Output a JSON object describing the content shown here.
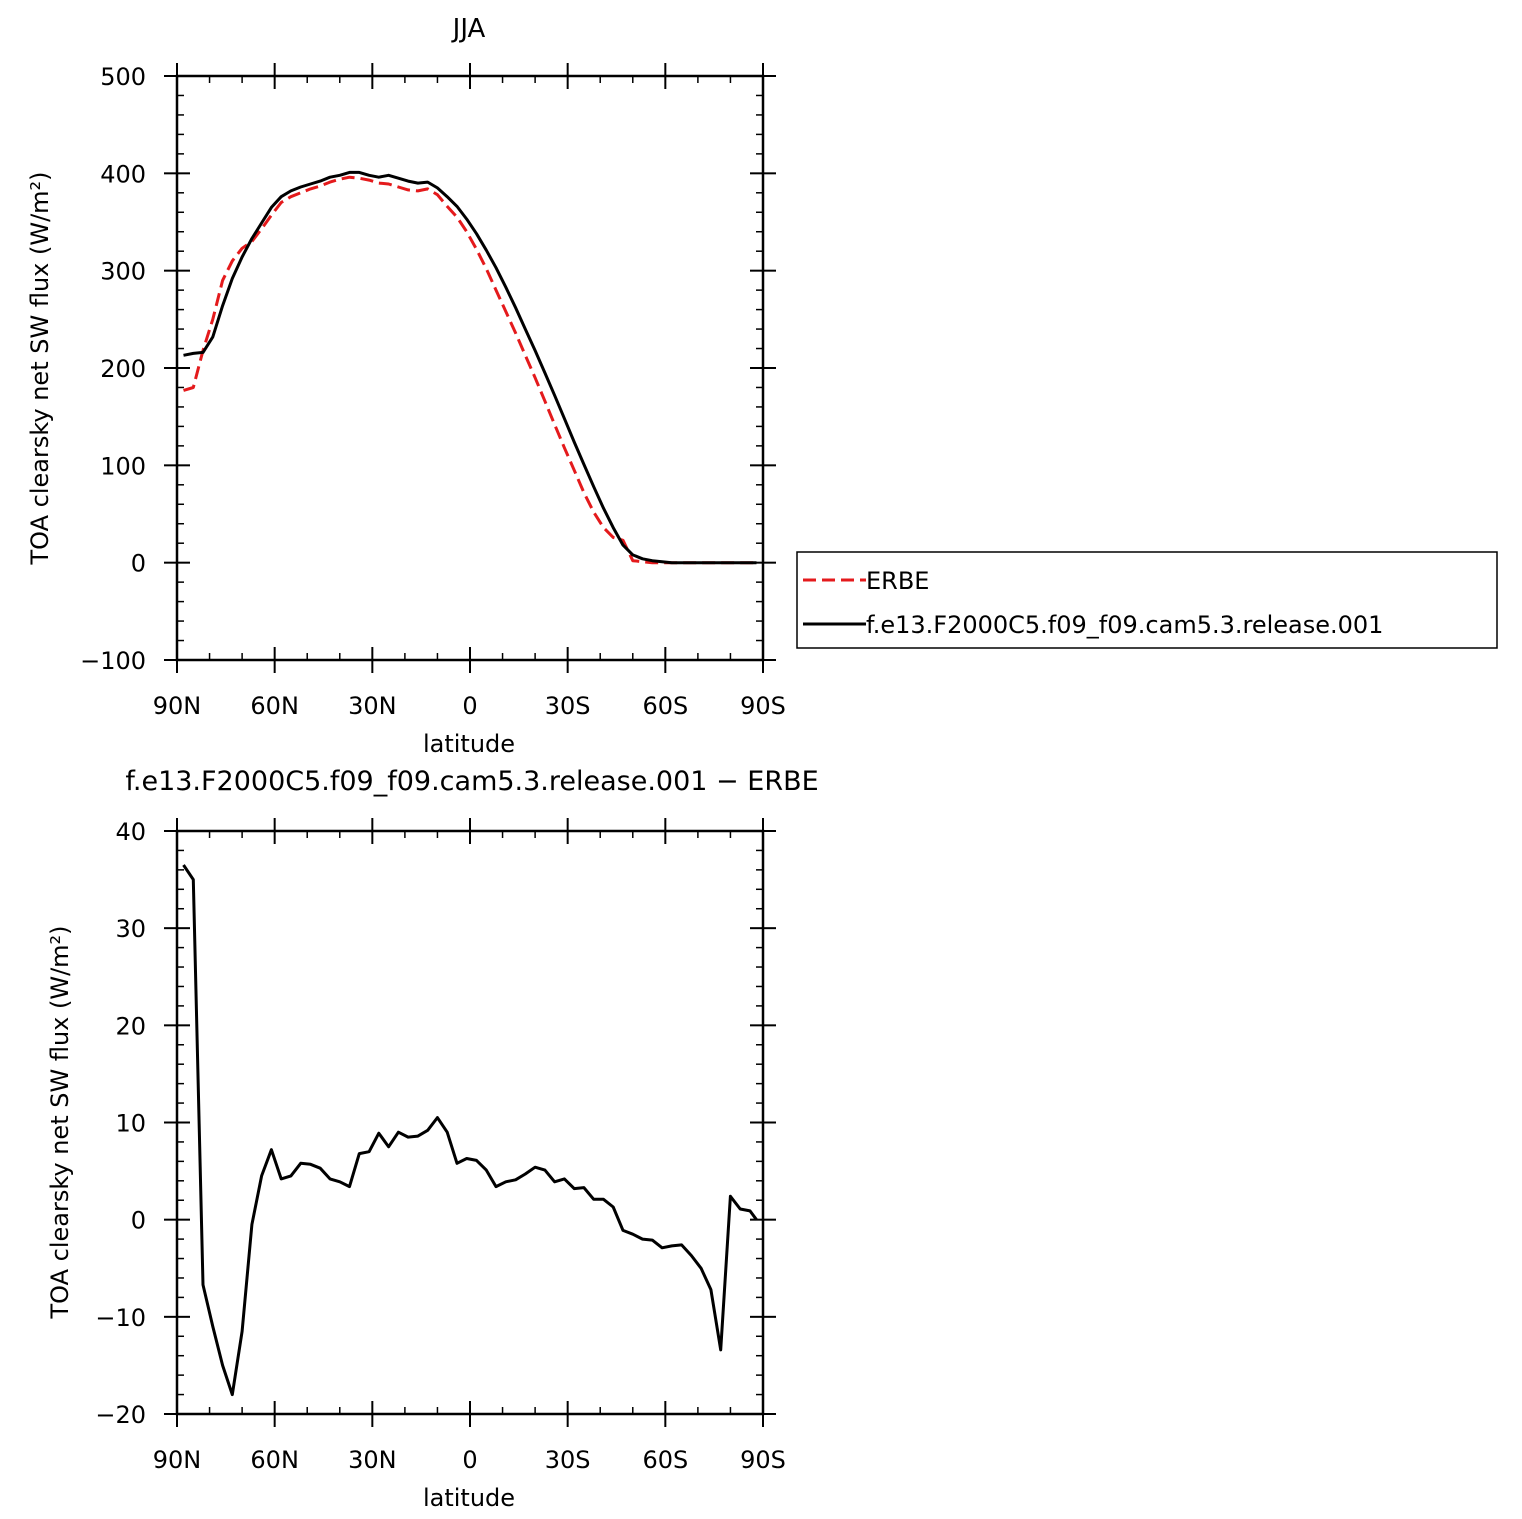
{
  "chart_data": [
    {
      "type": "line",
      "title": "JJA",
      "xlabel": "latitude",
      "ylabel": "TOA clearsky net SW flux (W/m²)",
      "xlim": [
        90,
        -90
      ],
      "ylim": [
        -100,
        500
      ],
      "xticks": [
        {
          "value": 90,
          "label": "90N"
        },
        {
          "value": 60,
          "label": "60N"
        },
        {
          "value": 30,
          "label": "30N"
        },
        {
          "value": 0,
          "label": "0"
        },
        {
          "value": -30,
          "label": "30S"
        },
        {
          "value": -60,
          "label": "60S"
        },
        {
          "value": -90,
          "label": "90S"
        }
      ],
      "yticks": [
        {
          "value": -100,
          "label": "−100"
        },
        {
          "value": 0,
          "label": "0"
        },
        {
          "value": 100,
          "label": "100"
        },
        {
          "value": 200,
          "label": "200"
        },
        {
          "value": 300,
          "label": "300"
        },
        {
          "value": 400,
          "label": "400"
        },
        {
          "value": 500,
          "label": "500"
        }
      ],
      "legend_position": "right",
      "series": [
        {
          "name": "ERBE",
          "color": "#e41a1c",
          "dash": "dashed",
          "x": [
            88,
            85,
            82,
            79,
            76,
            73,
            70,
            67,
            64,
            61,
            58,
            55,
            52,
            49,
            46,
            43,
            40,
            37,
            34,
            31,
            28,
            25,
            22,
            19,
            16,
            13,
            10,
            7,
            4,
            1,
            -2,
            -5,
            -8,
            -11,
            -14,
            -17,
            -20,
            -23,
            -26,
            -29,
            -32,
            -35,
            -38,
            -41,
            -44,
            -47,
            -50,
            -53,
            -56,
            -59,
            -62,
            -65,
            -67,
            -68,
            -70,
            -73,
            -76,
            -79,
            -82,
            -85,
            -88
          ],
          "y": [
            177,
            180,
            218,
            250,
            290,
            310,
            323,
            330,
            343,
            357,
            370,
            376,
            380,
            384,
            387,
            391,
            394,
            396,
            395,
            393,
            390,
            389,
            386,
            383,
            382,
            384,
            378,
            366,
            355,
            340,
            322,
            302,
            280,
            258,
            236,
            213,
            190,
            166,
            142,
            118,
            95,
            72,
            52,
            36,
            26,
            23,
            2,
            1,
            0,
            0,
            0,
            0,
            0,
            0,
            0,
            0,
            0,
            0,
            0,
            0,
            0
          ]
        },
        {
          "name": "f.e13.F2000C5.f09_f09.cam5.3.release.001",
          "color": "#000000",
          "dash": "solid",
          "x": [
            88,
            85,
            82,
            79,
            76,
            73,
            70,
            67,
            64,
            61,
            58,
            55,
            52,
            49,
            46,
            43,
            40,
            37,
            34,
            31,
            28,
            25,
            22,
            19,
            16,
            13,
            10,
            7,
            4,
            1,
            -2,
            -5,
            -8,
            -11,
            -14,
            -17,
            -20,
            -23,
            -26,
            -29,
            -32,
            -35,
            -38,
            -41,
            -44,
            -47,
            -50,
            -53,
            -56,
            -59,
            -62,
            -65,
            -68,
            -71,
            -74,
            -77,
            -80,
            -83,
            -86,
            -88
          ],
          "y": [
            213,
            215,
            216,
            232,
            264,
            292,
            314,
            333,
            349,
            365,
            376,
            382,
            386,
            389,
            392,
            396,
            398,
            401,
            401,
            398,
            396,
            398,
            395,
            392,
            390,
            391,
            385,
            376,
            366,
            353,
            338,
            321,
            303,
            283,
            262,
            240,
            218,
            195,
            172,
            148,
            124,
            101,
            78,
            56,
            36,
            18,
            8,
            4,
            2,
            1,
            0,
            0,
            0,
            0,
            0,
            0,
            0,
            0,
            0,
            0
          ]
        }
      ]
    },
    {
      "type": "line",
      "title": "f.e13.F2000C5.f09_f09.cam5.3.release.001 − ERBE",
      "xlabel": "latitude",
      "ylabel": "TOA clearsky net SW flux (W/m²)",
      "xlim": [
        90,
        -90
      ],
      "ylim": [
        -20,
        40
      ],
      "xticks": [
        {
          "value": 90,
          "label": "90N"
        },
        {
          "value": 60,
          "label": "60N"
        },
        {
          "value": 30,
          "label": "30N"
        },
        {
          "value": 0,
          "label": "0"
        },
        {
          "value": -30,
          "label": "30S"
        },
        {
          "value": -60,
          "label": "60S"
        },
        {
          "value": -90,
          "label": "90S"
        }
      ],
      "yticks": [
        {
          "value": -20,
          "label": "−20"
        },
        {
          "value": -10,
          "label": "−10"
        },
        {
          "value": 0,
          "label": "0"
        },
        {
          "value": 10,
          "label": "10"
        },
        {
          "value": 20,
          "label": "20"
        },
        {
          "value": 30,
          "label": "30"
        },
        {
          "value": 40,
          "label": "40"
        }
      ],
      "series": [
        {
          "color": "#000000",
          "dash": "solid",
          "x": [
            88,
            85,
            82,
            79,
            76,
            73,
            70,
            67,
            64,
            61,
            58,
            55,
            52,
            49,
            46,
            43,
            40,
            37,
            34,
            31,
            28,
            25,
            22,
            19,
            16,
            13,
            10,
            7,
            4,
            1,
            -2,
            -5,
            -8,
            -11,
            -14,
            -17,
            -20,
            -23,
            -26,
            -29,
            -32,
            -35,
            -38,
            -41,
            -44,
            -47,
            -50,
            -53,
            -56,
            -59,
            -62,
            -65,
            -68,
            -71,
            -74,
            -77,
            -80,
            -83,
            -86,
            -88
          ],
          "y": [
            36.5,
            35,
            -6.7,
            -11,
            -15,
            -18,
            -11.5,
            -0.5,
            4.5,
            7.2,
            4.2,
            4.5,
            5.8,
            5.7,
            5.3,
            4.2,
            3.9,
            3.4,
            6.8,
            7,
            8.9,
            7.5,
            9,
            8.5,
            8.6,
            9.2,
            10.5,
            9,
            5.8,
            6.3,
            6.1,
            5.1,
            3.4,
            3.9,
            4.1,
            4.7,
            5.4,
            5.1,
            3.9,
            4.2,
            3.2,
            3.3,
            2.1,
            2.1,
            1.3,
            -1.1,
            -1.5,
            -2,
            -2.1,
            -2.9,
            -2.7,
            -2.6,
            -3.7,
            -5,
            -7.2,
            -13.4,
            2.4,
            1.1,
            0.9,
            0
          ]
        }
      ]
    }
  ]
}
